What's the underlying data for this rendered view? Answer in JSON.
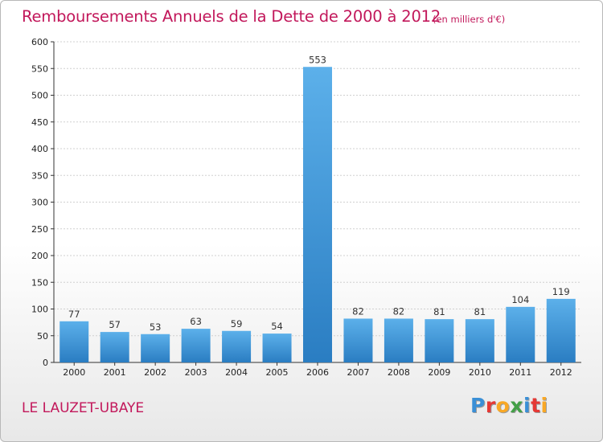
{
  "header": {
    "title": "Remboursements Annuels de la Dette de 2000 à 2012",
    "subtitle": "(en milliers d'€)"
  },
  "footer": {
    "commune": "LE LAUZET-UBAYE",
    "logo_letters": [
      {
        "char": "P",
        "color": "#3a8fd6"
      },
      {
        "char": "r",
        "color": "#e53935"
      },
      {
        "char": "o",
        "color": "#f9a825"
      },
      {
        "char": "x",
        "color": "#43a047"
      },
      {
        "char": "i",
        "color": "#3a8fd6"
      },
      {
        "char": "t",
        "color": "#e53935"
      },
      {
        "char": "i",
        "color": "#f9a825"
      }
    ]
  },
  "colors": {
    "title": "#c2185b",
    "bar_light": "#5aaee8",
    "bar_dark": "#2a7fc4",
    "grid": "#d0d0d0"
  },
  "chart_data": {
    "type": "bar",
    "title": "Remboursements Annuels de la Dette de 2000 à 2012",
    "unit": "(en milliers d'€)",
    "categories": [
      "2000",
      "2001",
      "2002",
      "2003",
      "2004",
      "2005",
      "2006",
      "2007",
      "2008",
      "2009",
      "2010",
      "2011",
      "2012"
    ],
    "values": [
      77,
      57,
      53,
      63,
      59,
      54,
      553,
      82,
      82,
      81,
      81,
      104,
      119
    ],
    "ylim": [
      0,
      600
    ],
    "yticks": [
      0,
      50,
      100,
      150,
      200,
      250,
      300,
      350,
      400,
      450,
      500,
      550,
      600
    ],
    "grid": true,
    "legend": "none"
  }
}
